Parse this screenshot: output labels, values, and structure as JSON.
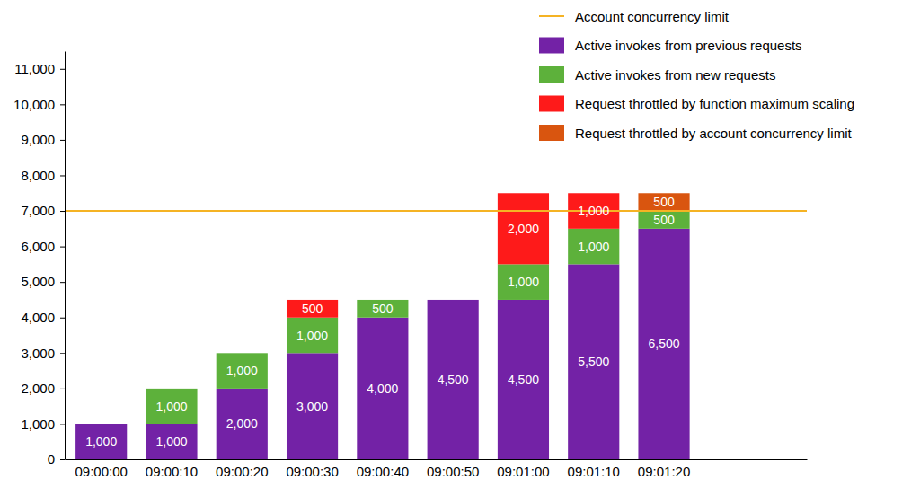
{
  "chart_data": {
    "type": "bar",
    "stacked": true,
    "data_labels": true,
    "legend": "upper right",
    "categories": [
      "09:00:00",
      "09:00:10",
      "09:00:20",
      "09:00:30",
      "09:00:40",
      "09:00:50",
      "09:01:00",
      "09:01:10",
      "09:01:20"
    ],
    "ylim": [
      0,
      11500
    ],
    "yticks": [
      0,
      {
        "value": 1000,
        "label": "1,000"
      },
      {
        "value": 2000,
        "label": "2,000"
      },
      {
        "value": 3000,
        "label": "3,000"
      },
      {
        "value": 4000,
        "label": "4,000"
      },
      {
        "value": 5000,
        "label": "5,000"
      },
      {
        "value": 6000,
        "label": "6,000"
      },
      {
        "value": 7000,
        "label": "7,000"
      },
      {
        "value": 8000,
        "label": "8,000"
      },
      {
        "value": 9000,
        "label": "9,000"
      },
      {
        "value": 10000,
        "label": "10,000"
      },
      {
        "value": 11000,
        "label": "11,000"
      }
    ],
    "limit": {
      "name": "Account concurrency limit",
      "value": 7000,
      "color": "#f5b324"
    },
    "series": [
      {
        "name": "Active invokes from previous requests",
        "color": "#7322a6",
        "values": [
          1000,
          1000,
          2000,
          3000,
          4000,
          4500,
          4500,
          5500,
          6500
        ],
        "value_labels": [
          "1,000",
          "1,000",
          "2,000",
          "3,000",
          "4,000",
          "4,500",
          "4,500",
          "5,500",
          "6,500"
        ]
      },
      {
        "name": "Active invokes from new requests",
        "color": "#5db13b",
        "values": [
          null,
          1000,
          1000,
          1000,
          500,
          null,
          1000,
          1000,
          500
        ],
        "value_labels": [
          null,
          "1,000",
          "1,000",
          "1,000",
          "500",
          null,
          "1,000",
          "1,000",
          "500"
        ]
      },
      {
        "name": "Request throttled by function maximum scaling",
        "color": "#fe1a1a",
        "values": [
          null,
          null,
          null,
          500,
          null,
          null,
          2000,
          1000,
          null
        ],
        "value_labels": [
          null,
          null,
          null,
          "500",
          null,
          null,
          "2,000",
          "1,000",
          null
        ]
      },
      {
        "name": "Request throttled by account concurrency limit",
        "color": "#d9550f",
        "values": [
          null,
          null,
          null,
          null,
          null,
          null,
          null,
          null,
          500
        ],
        "value_labels": [
          null,
          null,
          null,
          null,
          null,
          null,
          null,
          null,
          "500"
        ]
      }
    ]
  }
}
